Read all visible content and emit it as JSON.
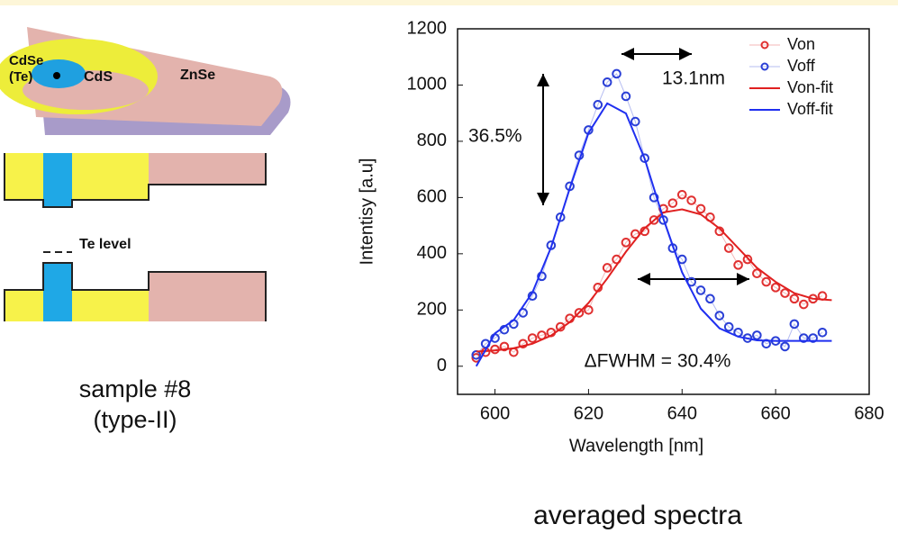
{
  "diagram": {
    "labels": {
      "core": "CdSe\n(Te)",
      "shell1": "CdS",
      "shell2": "ZnSe",
      "te_level": "Te level"
    },
    "sample": "sample #8",
    "sample_type": "(type-II)"
  },
  "caption": "averaged spectra",
  "chart_data": {
    "type": "scatter",
    "x_label": "Wavelength [nm]",
    "y_label": "Intentisy [a.u]",
    "xlim": [
      592,
      680
    ],
    "xticks": [
      600,
      620,
      640,
      660,
      680
    ],
    "ylim": [
      -100,
      1200
    ],
    "yticks": [
      0,
      200,
      400,
      600,
      800,
      1000,
      1200
    ],
    "legend": "upper right",
    "annotations": [
      "13.1nm",
      "36.5%",
      "ΔFWHM = 30.4%"
    ],
    "series": [
      {
        "name": "Von",
        "color": "#e03030",
        "style": "markers",
        "x": [
          596,
          598,
          600,
          602,
          604,
          606,
          608,
          610,
          612,
          614,
          616,
          618,
          620,
          622,
          624,
          626,
          628,
          630,
          632,
          634,
          636,
          638,
          640,
          642,
          644,
          646,
          648,
          650,
          652,
          654,
          656,
          658,
          660,
          662,
          664,
          666,
          668,
          670
        ],
        "values": [
          30,
          50,
          60,
          70,
          50,
          80,
          100,
          110,
          120,
          140,
          170,
          190,
          200,
          280,
          350,
          380,
          440,
          470,
          480,
          520,
          560,
          580,
          610,
          590,
          560,
          530,
          480,
          420,
          360,
          380,
          330,
          300,
          280,
          260,
          240,
          220,
          240,
          250
        ]
      },
      {
        "name": "Voff",
        "color": "#2a3fd6",
        "style": "markers",
        "x": [
          596,
          598,
          600,
          602,
          604,
          606,
          608,
          610,
          612,
          614,
          616,
          618,
          620,
          622,
          624,
          626,
          628,
          630,
          632,
          634,
          636,
          638,
          640,
          642,
          644,
          646,
          648,
          650,
          652,
          654,
          656,
          658,
          660,
          662,
          664,
          666,
          668,
          670
        ],
        "values": [
          40,
          80,
          100,
          130,
          150,
          190,
          250,
          320,
          430,
          530,
          640,
          750,
          840,
          930,
          1010,
          1040,
          960,
          870,
          740,
          600,
          520,
          420,
          380,
          300,
          270,
          240,
          180,
          140,
          120,
          100,
          110,
          80,
          90,
          70,
          150,
          100,
          100,
          120
        ]
      },
      {
        "name": "Von-fit",
        "color": "#e02020",
        "style": "line",
        "x": [
          596,
          600,
          604,
          608,
          612,
          616,
          620,
          624,
          628,
          632,
          636,
          640,
          644,
          648,
          652,
          656,
          660,
          664,
          668,
          672
        ],
        "values": [
          52,
          56,
          64,
          80,
          109,
          157,
          225,
          312,
          407,
          491,
          547,
          558,
          540,
          490,
          420,
          350,
          300,
          260,
          240,
          235
        ]
      },
      {
        "name": "Voff-fit",
        "color": "#1f2ff0",
        "style": "line",
        "x": [
          596,
          600,
          604,
          608,
          612,
          616,
          620,
          624,
          628,
          632,
          636,
          640,
          644,
          648,
          652,
          656,
          660,
          664,
          668,
          672
        ],
        "values": [
          0,
          117,
          164,
          262,
          423,
          633,
          830,
          935,
          899,
          738,
          525,
          334,
          205,
          135,
          105,
          92,
          90,
          90,
          90,
          90
        ]
      }
    ]
  }
}
